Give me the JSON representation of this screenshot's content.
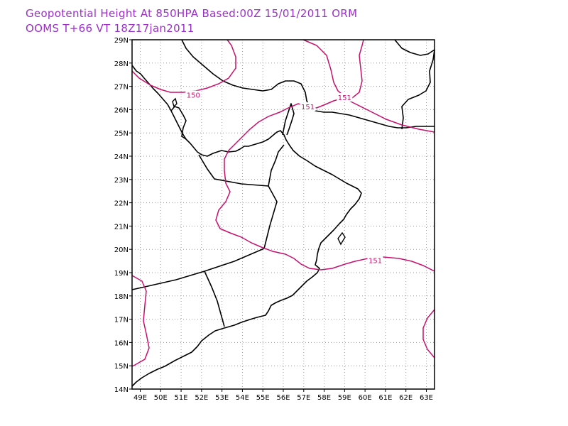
{
  "title_line1": "Geopotential Height At 850HPA Based:00Z 15/01/2011 ORM",
  "title_line2": "OOMS T+66 VT 18Z17jan2011",
  "colors": {
    "title": "#9b30c8",
    "contour": "#c8106e",
    "coast": "#000000",
    "grid": "#9a9a9a",
    "background": "#ffffff"
  },
  "map": {
    "lon_range": [
      48.6,
      63.4
    ],
    "lat_range": [
      14,
      29
    ],
    "grid": "dotted, 1 degree",
    "lat_labels": [
      "14N",
      "15N",
      "16N",
      "17N",
      "18N",
      "19N",
      "20N",
      "21N",
      "22N",
      "23N",
      "24N",
      "25N",
      "26N",
      "27N",
      "28N",
      "29N"
    ],
    "lon_labels": [
      "49E",
      "50E",
      "51E",
      "52E",
      "53E",
      "54E",
      "55E",
      "56E",
      "57E",
      "58E",
      "59E",
      "60E",
      "61E",
      "62E",
      "63E"
    ]
  },
  "contour_labels": [
    {
      "text": "150",
      "lon": 51.6,
      "lat": 26.6
    },
    {
      "text": "151",
      "lon": 57.2,
      "lat": 26.1
    },
    {
      "text": "151",
      "lon": 59.0,
      "lat": 26.5
    },
    {
      "text": "151",
      "lon": 60.5,
      "lat": 19.5
    }
  ]
}
